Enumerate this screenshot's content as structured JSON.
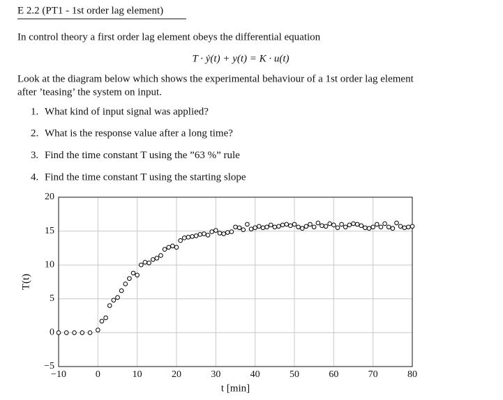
{
  "header": {
    "title": "E 2.2 (PT1 - 1st order lag element)"
  },
  "paragraphs": [
    [
      "In control theory a first order lag element obeys the differential equation"
    ],
    [
      "Look at the diagram below which shows the experimental behaviour of a 1st order lag element",
      "after ’teasing’ the system on input."
    ]
  ],
  "equation": "T · ẏ(t) + y(t) = K · u(t)",
  "questions": [
    {
      "number": "1.",
      "text": "What kind of input signal was applied?"
    },
    {
      "number": "2.",
      "text": "What is the response value after a long time?"
    },
    {
      "number": "3.",
      "text": "Find the time constant T using the ”63 %” rule"
    },
    {
      "number": "4.",
      "text": "Find the time constant T using the starting slope"
    }
  ],
  "chart_data": {
    "type": "scatter",
    "xlabel": "t [min]",
    "ylabel": "T(t)",
    "xlim": [
      -10,
      80
    ],
    "ylim": [
      -5,
      20
    ],
    "xticks": [
      {
        "value": -10,
        "label": "−10"
      },
      0,
      10,
      20,
      30,
      40,
      50,
      60,
      70,
      80
    ],
    "yticks": [
      {
        "value": -5,
        "label": "−5"
      },
      0,
      5,
      10,
      15,
      20
    ],
    "grid": true,
    "color": "#000000",
    "x": [
      -10,
      -8,
      -6,
      -4,
      -2,
      0,
      1,
      2,
      3,
      4,
      5,
      6,
      7,
      8,
      9,
      10,
      11,
      12,
      13,
      14,
      15,
      16,
      17,
      18,
      19,
      20,
      21,
      22,
      23,
      24,
      25,
      26,
      27,
      28,
      29,
      30,
      31,
      32,
      33,
      34,
      35,
      36,
      37,
      38,
      39,
      40,
      41,
      42,
      43,
      44,
      45,
      46,
      47,
      48,
      49,
      50,
      51,
      52,
      53,
      54,
      55,
      56,
      57,
      58,
      59,
      60,
      61,
      62,
      63,
      64,
      65,
      66,
      67,
      68,
      69,
      70,
      71,
      72,
      73,
      74,
      75,
      76,
      77,
      78,
      79,
      80
    ],
    "values": [
      0,
      0,
      0,
      0,
      0,
      0.4,
      1.7,
      2.2,
      4.0,
      4.8,
      5.2,
      6.2,
      7.2,
      8.0,
      8.8,
      8.5,
      10.0,
      10.4,
      10.3,
      10.8,
      11.0,
      11.4,
      12.3,
      12.6,
      12.8,
      12.6,
      13.6,
      14.0,
      14.1,
      14.2,
      14.3,
      14.5,
      14.6,
      14.4,
      14.9,
      15.1,
      14.7,
      14.6,
      14.8,
      14.9,
      15.6,
      15.5,
      15.2,
      16.0,
      15.3,
      15.5,
      15.7,
      15.5,
      15.6,
      15.9,
      15.6,
      15.7,
      15.9,
      16.0,
      15.8,
      16.0,
      15.6,
      15.4,
      15.7,
      16.0,
      15.6,
      16.2,
      15.8,
      15.7,
      16.1,
      15.9,
      15.5,
      16.0,
      15.6,
      15.9,
      16.1,
      16.0,
      15.8,
      15.5,
      15.4,
      15.6,
      16.0,
      15.6,
      16.1,
      15.6,
      15.4,
      16.2,
      15.7,
      15.5,
      15.6,
      15.7
    ]
  }
}
